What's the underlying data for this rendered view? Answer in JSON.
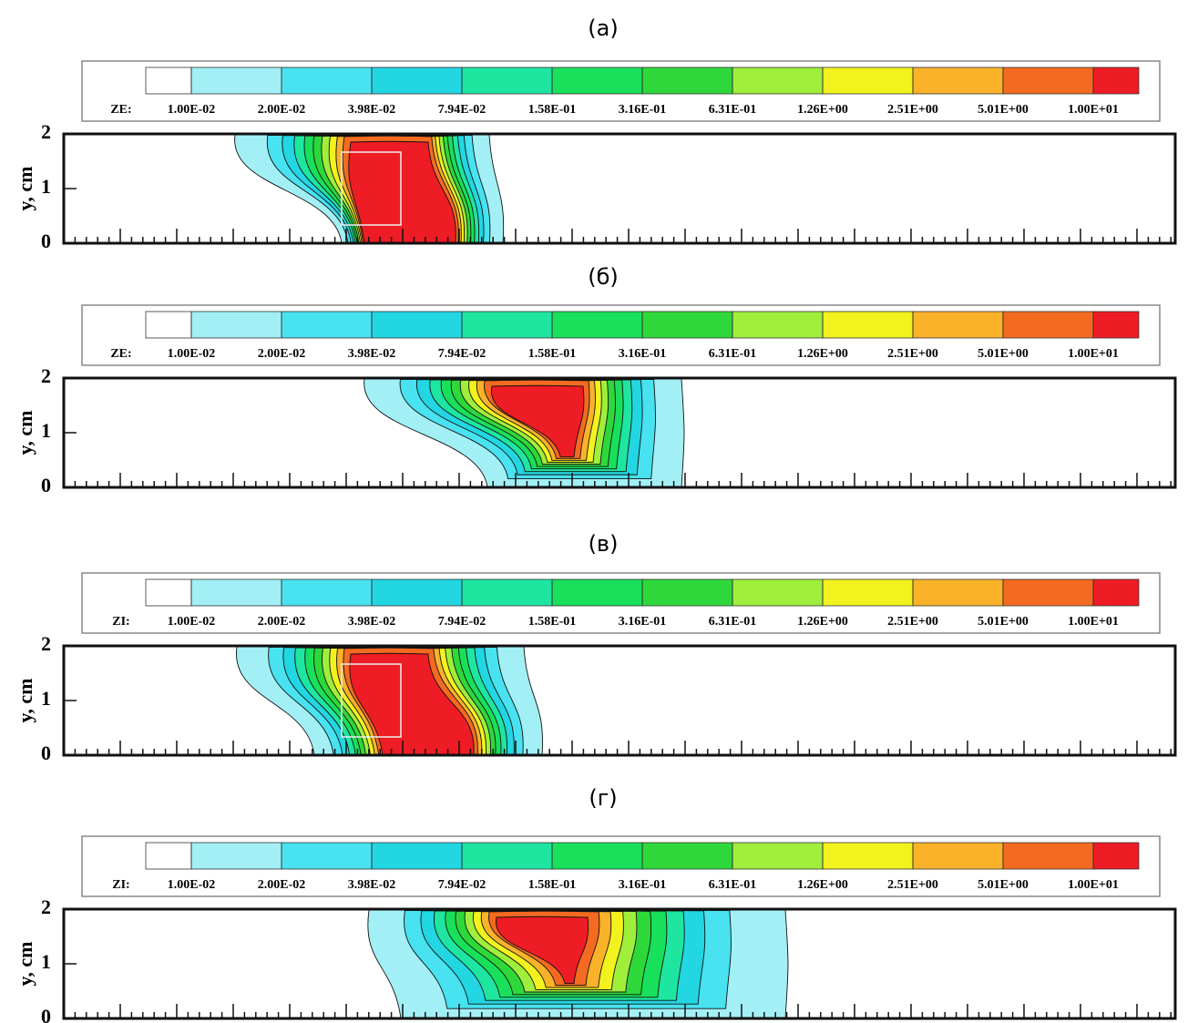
{
  "chart_data": [
    {
      "type": "contour",
      "title": "(а)",
      "colorbar_label": "ZE:",
      "ylabel": "y, cm",
      "ylim": [
        0,
        2
      ],
      "yticks": [
        0,
        1,
        2
      ],
      "levels": [
        {
          "value": 0.01,
          "label": "1.00E-02"
        },
        {
          "value": 0.02,
          "label": "2.00E-02"
        },
        {
          "value": 0.0398,
          "label": "3.98E-02"
        },
        {
          "value": 0.0794,
          "label": "7.94E-02"
        },
        {
          "value": 0.158,
          "label": "1.58E-01"
        },
        {
          "value": 0.316,
          "label": "3.16E-01"
        },
        {
          "value": 0.631,
          "label": "6.31E-01"
        },
        {
          "value": 1.26,
          "label": "1.26E+00"
        },
        {
          "value": 2.51,
          "label": "2.51E+00"
        },
        {
          "value": 5.01,
          "label": "5.01E+00"
        },
        {
          "value": 10,
          "label": "1.00E+01"
        }
      ],
      "colors": [
        "#ffffff",
        "#a2f0f6",
        "#48e2f0",
        "#22d6e2",
        "#1ee6a0",
        "#18e05a",
        "#2ed83a",
        "#a0ee3c",
        "#f2f21e",
        "#fab22a",
        "#f46a20",
        "#ee1c24"
      ]
    },
    {
      "type": "contour",
      "title": "(б)",
      "colorbar_label": "ZE:",
      "ylabel": "y, cm",
      "ylim": [
        0,
        2
      ],
      "yticks": [
        0,
        1,
        2
      ],
      "levels": [
        {
          "value": 0.01,
          "label": "1.00E-02"
        },
        {
          "value": 0.02,
          "label": "2.00E-02"
        },
        {
          "value": 0.0398,
          "label": "3.98E-02"
        },
        {
          "value": 0.0794,
          "label": "7.94E-02"
        },
        {
          "value": 0.158,
          "label": "1.58E-01"
        },
        {
          "value": 0.316,
          "label": "3.16E-01"
        },
        {
          "value": 0.631,
          "label": "6.31E-01"
        },
        {
          "value": 1.26,
          "label": "1.26E+00"
        },
        {
          "value": 2.51,
          "label": "2.51E+00"
        },
        {
          "value": 5.01,
          "label": "5.01E+00"
        },
        {
          "value": 10,
          "label": "1.00E+01"
        }
      ],
      "colors": [
        "#ffffff",
        "#a2f0f6",
        "#48e2f0",
        "#22d6e2",
        "#1ee6a0",
        "#18e05a",
        "#2ed83a",
        "#a0ee3c",
        "#f2f21e",
        "#fab22a",
        "#f46a20",
        "#ee1c24"
      ]
    },
    {
      "type": "contour",
      "title": "(в)",
      "colorbar_label": "ZI:",
      "ylabel": "y, cm",
      "ylim": [
        0,
        2
      ],
      "yticks": [
        0,
        1,
        2
      ],
      "levels": [
        {
          "value": 0.01,
          "label": "1.00E-02"
        },
        {
          "value": 0.02,
          "label": "2.00E-02"
        },
        {
          "value": 0.0398,
          "label": "3.98E-02"
        },
        {
          "value": 0.0794,
          "label": "7.94E-02"
        },
        {
          "value": 0.158,
          "label": "1.58E-01"
        },
        {
          "value": 0.316,
          "label": "3.16E-01"
        },
        {
          "value": 0.631,
          "label": "6.31E-01"
        },
        {
          "value": 1.26,
          "label": "1.26E+00"
        },
        {
          "value": 2.51,
          "label": "2.51E+00"
        },
        {
          "value": 5.01,
          "label": "5.01E+00"
        },
        {
          "value": 10,
          "label": "1.00E+01"
        }
      ],
      "colors": [
        "#ffffff",
        "#a2f0f6",
        "#48e2f0",
        "#22d6e2",
        "#1ee6a0",
        "#18e05a",
        "#2ed83a",
        "#a0ee3c",
        "#f2f21e",
        "#fab22a",
        "#f46a20",
        "#ee1c24"
      ]
    },
    {
      "type": "contour",
      "title": "(г)",
      "colorbar_label": "ZI:",
      "ylabel": "y, cm",
      "ylim": [
        0,
        2
      ],
      "yticks": [
        0,
        1,
        2
      ],
      "levels": [
        {
          "value": 0.01,
          "label": "1.00E-02"
        },
        {
          "value": 0.02,
          "label": "2.00E-02"
        },
        {
          "value": 0.0398,
          "label": "3.98E-02"
        },
        {
          "value": 0.0794,
          "label": "7.94E-02"
        },
        {
          "value": 0.158,
          "label": "1.58E-01"
        },
        {
          "value": 0.316,
          "label": "3.16E-01"
        },
        {
          "value": 0.631,
          "label": "6.31E-01"
        },
        {
          "value": 1.26,
          "label": "1.26E+00"
        },
        {
          "value": 2.51,
          "label": "2.51E+00"
        },
        {
          "value": 5.01,
          "label": "5.01E+00"
        },
        {
          "value": 10,
          "label": "1.00E+01"
        }
      ],
      "colors": [
        "#ffffff",
        "#a2f0f6",
        "#48e2f0",
        "#22d6e2",
        "#1ee6a0",
        "#18e05a",
        "#2ed83a",
        "#a0ee3c",
        "#f2f21e",
        "#fab22a",
        "#f46a20",
        "#ee1c24"
      ]
    }
  ]
}
